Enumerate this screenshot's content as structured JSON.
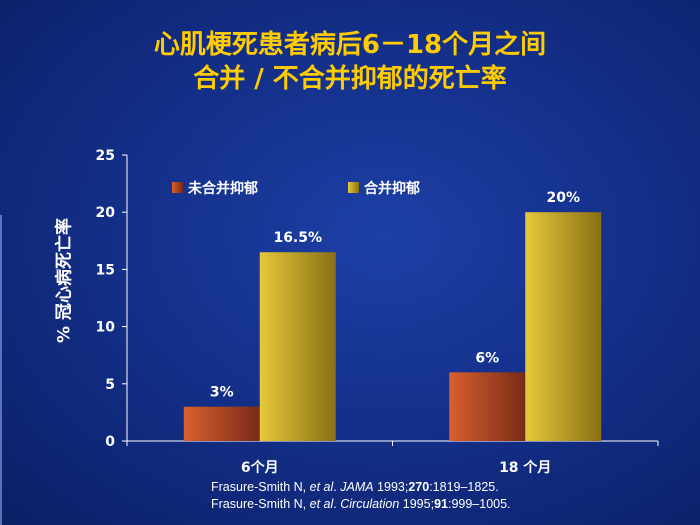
{
  "title": {
    "line1": "心肌梗死患者病后6－18个月之间",
    "line2": "合并 / 不合并抑郁的死亡率"
  },
  "references": {
    "ref1": {
      "author": "Frasure-Smith N, ",
      "etal": "et al",
      "sep": ". ",
      "journal": "JAMA",
      "year": " 1993;",
      "vol": "270",
      "pages": ":1819–1825."
    },
    "ref2": {
      "author": "Frasure-Smith N, ",
      "etal": "et al",
      "sep": ".  ",
      "journal": "Circulation",
      "year": " 1995;",
      "vol": "91",
      "pages": ":999–1005."
    }
  },
  "chart_data": {
    "type": "bar",
    "title": "",
    "xlabel": "",
    "ylabel": "% 冠心病死亡率",
    "ylim": [
      0,
      25
    ],
    "yticks": [
      0,
      5,
      10,
      15,
      20,
      25
    ],
    "categories": [
      "6个月",
      "18  个月"
    ],
    "legend_position": "top",
    "series": [
      {
        "name": "未合并抑郁",
        "values": [
          3,
          6
        ],
        "labels": [
          "3%",
          "6%"
        ],
        "color": "#c8522a",
        "color_dark": "#7a2a16"
      },
      {
        "name": "合并抑郁",
        "values": [
          16.5,
          20
        ],
        "labels": [
          "16.5%",
          "20%"
        ],
        "color": "#d8b82a",
        "color_dark": "#8a7014"
      }
    ]
  }
}
